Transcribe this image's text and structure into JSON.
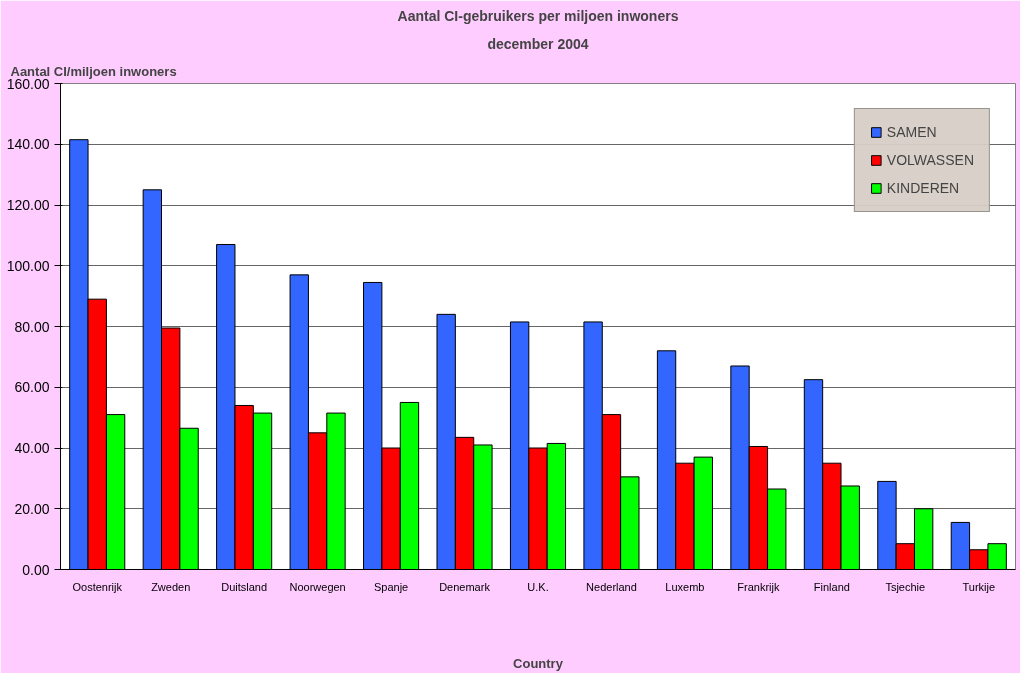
{
  "chart_data": {
    "type": "bar",
    "title": "Aantal CI-gebruikers per miljoen inwoners",
    "subtitle": "december 2004",
    "xlabel": "Country",
    "ylabel": "Aantal CI/miljoen inwoners",
    "categories": [
      "Oostenrijk",
      "Zweden",
      "Duitsland",
      "Noorwegen",
      "Spanje",
      "Denemark",
      "U.K.",
      "Nederland",
      "Luxemb",
      "Frankrijk",
      "Finland",
      "Tsjechie",
      "Turkije"
    ],
    "series": [
      {
        "name": "SAMEN",
        "color": "#3366ff",
        "values": [
          141.5,
          125,
          107,
          97,
          94.5,
          84,
          81.5,
          81.5,
          72,
          67,
          62.5,
          29,
          15.5
        ]
      },
      {
        "name": "VOLWASSEN",
        "color": "#ff0000",
        "values": [
          89,
          79.5,
          54,
          45,
          40,
          43.5,
          40,
          51,
          35,
          40.5,
          35,
          8.5,
          6.5
        ]
      },
      {
        "name": "KINDEREN",
        "color": "#00ff00",
        "values": [
          51,
          46.5,
          51.5,
          51.5,
          55,
          41,
          41.5,
          30.5,
          37,
          26.5,
          27.5,
          20,
          8.5
        ]
      }
    ],
    "ylim": [
      0,
      160
    ],
    "yticks": [
      {
        "value": 0,
        "label": "0.00"
      },
      {
        "value": 20,
        "label": "20.00"
      },
      {
        "value": 40,
        "label": "40.00"
      },
      {
        "value": 60,
        "label": "60.00"
      },
      {
        "value": 80,
        "label": "80.00"
      },
      {
        "value": 100,
        "label": "100.00"
      },
      {
        "value": 120,
        "label": "120.00"
      },
      {
        "value": 140,
        "label": "140.00"
      },
      {
        "value": 160,
        "label": "160.00"
      }
    ],
    "grid": "y",
    "legend": "top right"
  }
}
